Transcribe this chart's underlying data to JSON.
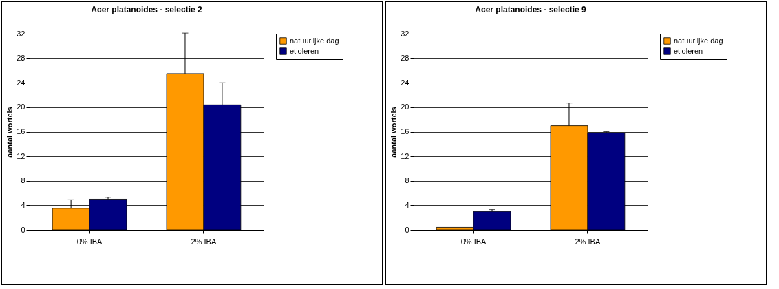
{
  "chart_data": [
    {
      "type": "bar",
      "title": "Acer platanoides - selectie 2",
      "ylabel": "aantal wortels",
      "categories": [
        "0% IBA",
        "2% IBA"
      ],
      "series": [
        {
          "name": "natuurlijke dag",
          "color": "#ff9900",
          "values": [
            3.5,
            25.5
          ],
          "errors": [
            [
              3.5,
              4.9
            ],
            [
              25.5,
              32.1
            ]
          ]
        },
        {
          "name": "etioleren",
          "color": "#000080",
          "values": [
            5.0,
            20.4
          ],
          "errors": [
            [
              5.0,
              5.3
            ],
            [
              20.4,
              24.0
            ]
          ]
        }
      ],
      "ylim": [
        0,
        32
      ],
      "yticks": [
        0,
        4,
        8,
        12,
        16,
        20,
        24,
        28,
        32
      ],
      "grid": "y",
      "legend": "right"
    },
    {
      "type": "bar",
      "title": "Acer platanoides - selectie 9",
      "ylabel": "aantal wortels",
      "categories": [
        "0% IBA",
        "2% IBA"
      ],
      "series": [
        {
          "name": "natuurlijke dag",
          "color": "#ff9900",
          "values": [
            0.4,
            17.0
          ],
          "errors": [
            null,
            [
              17.0,
              20.7
            ]
          ]
        },
        {
          "name": "etioleren",
          "color": "#000080",
          "values": [
            3.0,
            15.8
          ],
          "errors": [
            [
              3.0,
              3.3
            ],
            [
              15.8,
              16.0
            ]
          ]
        }
      ],
      "ylim": [
        0,
        32
      ],
      "yticks": [
        0,
        4,
        8,
        12,
        16,
        20,
        24,
        28,
        32
      ],
      "grid": "y",
      "legend": "right"
    }
  ]
}
